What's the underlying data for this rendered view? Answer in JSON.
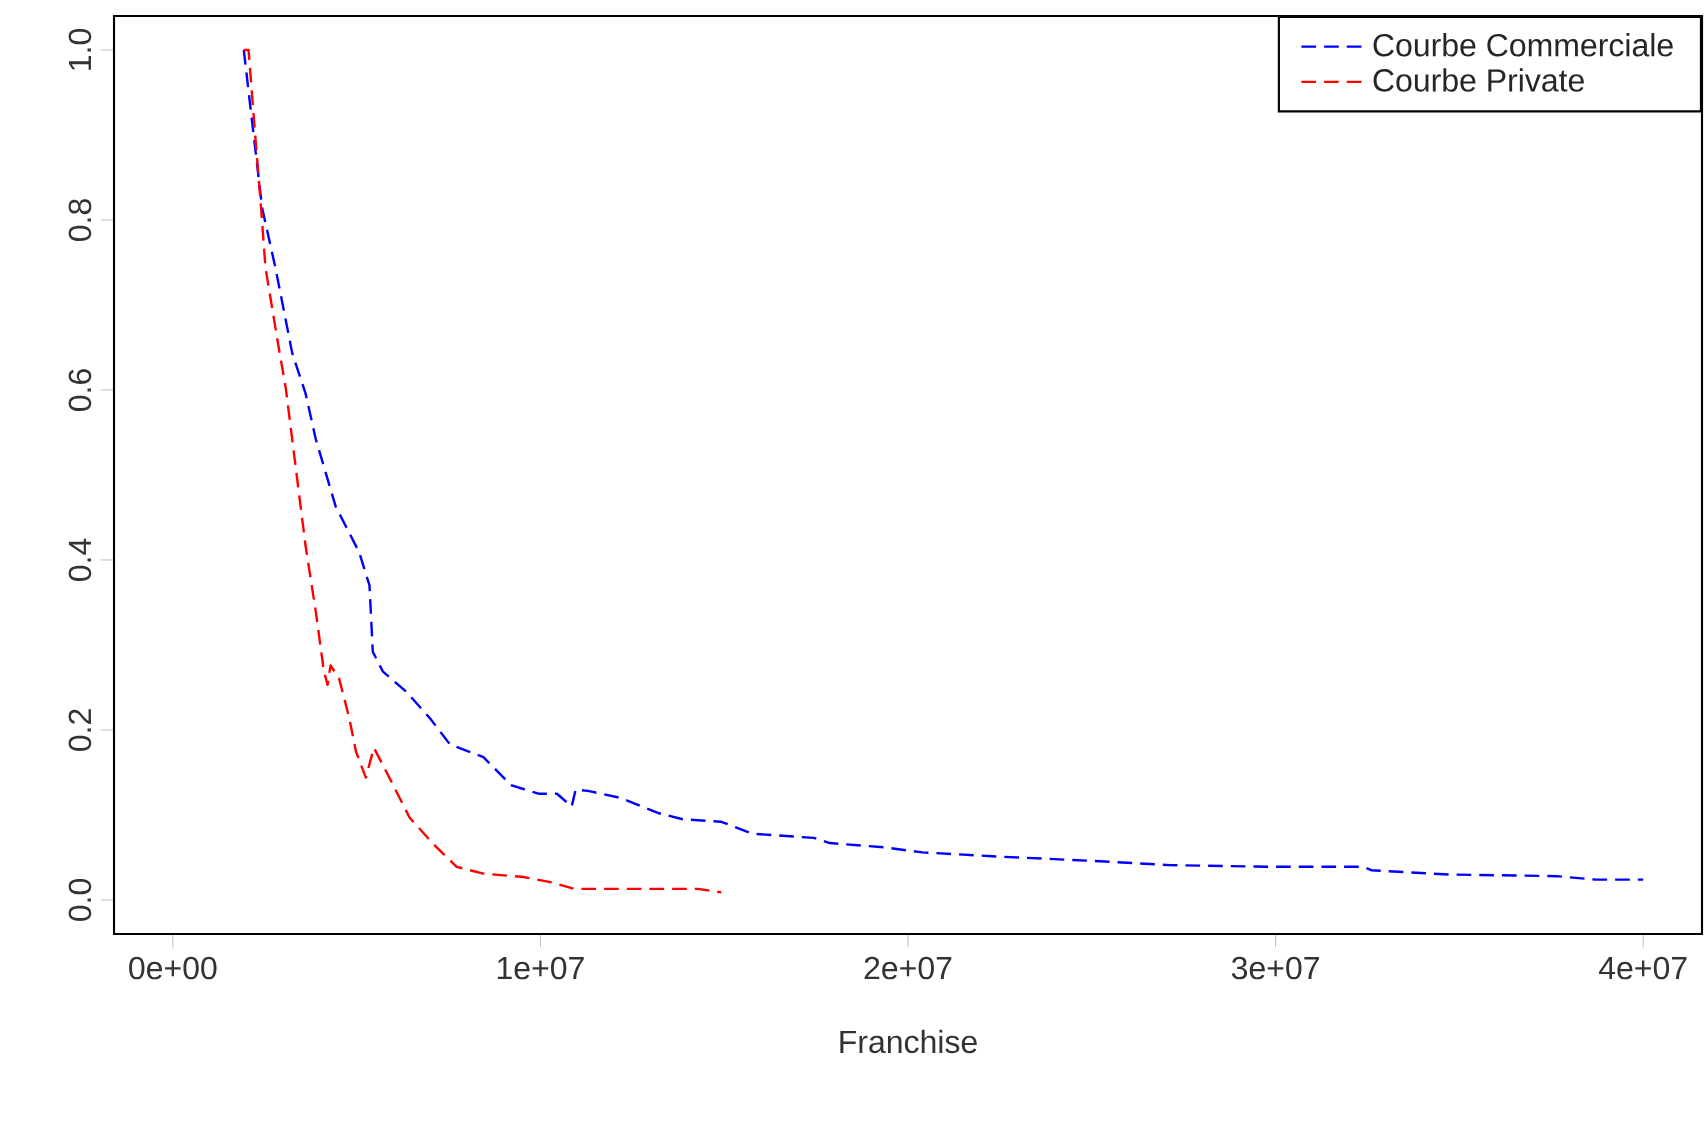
{
  "chart_data": {
    "type": "line",
    "xlabel": "Franchise",
    "xlim": [
      -1600000,
      41600000
    ],
    "ylim": [
      -0.04,
      1.04
    ],
    "xticks": [
      {
        "value": 0,
        "label": "0e+00"
      },
      {
        "value": 10000000,
        "label": "1e+07"
      },
      {
        "value": 20000000,
        "label": "2e+07"
      },
      {
        "value": 30000000,
        "label": "3e+07"
      },
      {
        "value": 40000000,
        "label": "4e+07"
      }
    ],
    "yticks": [
      {
        "value": 0,
        "label": "0.0"
      },
      {
        "value": 0.2,
        "label": "0.2"
      },
      {
        "value": 0.4,
        "label": "0.4"
      },
      {
        "value": 0.6,
        "label": "0.6"
      },
      {
        "value": 0.8,
        "label": "0.8"
      },
      {
        "value": 1.0,
        "label": "1.0"
      }
    ],
    "legend": "top right",
    "line_style": "dashed",
    "series": [
      {
        "name": "Courbe Commerciale",
        "color": "#0000ff",
        "x": [
          1930000,
          2430000,
          2790000,
          3250000,
          3610000,
          3890000,
          4430000,
          5070000,
          5350000,
          5440000,
          5710000,
          6350000,
          6990000,
          7540000,
          8450000,
          9200000,
          9950000,
          10450000,
          10850000,
          10960000,
          11330000,
          12180000,
          13230000,
          13870000,
          14920000,
          15760000,
          17440000,
          17870000,
          19340000,
          20390000,
          22500000,
          25020000,
          27130000,
          29860000,
          32390000,
          32600000,
          34700000,
          37650000,
          38700000,
          40000000
        ],
        "values": [
          1.0,
          0.814,
          0.744,
          0.643,
          0.596,
          0.542,
          0.463,
          0.409,
          0.37,
          0.292,
          0.269,
          0.245,
          0.214,
          0.183,
          0.168,
          0.135,
          0.125,
          0.125,
          0.11,
          0.13,
          0.128,
          0.12,
          0.102,
          0.095,
          0.092,
          0.078,
          0.073,
          0.067,
          0.062,
          0.056,
          0.051,
          0.046,
          0.041,
          0.039,
          0.039,
          0.035,
          0.03,
          0.028,
          0.024,
          0.024
        ]
      },
      {
        "name": "Courbe Private",
        "color": "#ff0000",
        "x": [
          1930000,
          2060000,
          2240000,
          2390000,
          2520000,
          2700000,
          2880000,
          3070000,
          3250000,
          3430000,
          3610000,
          3890000,
          4110000,
          4210000,
          4290000,
          4520000,
          4800000,
          4980000,
          5250000,
          5470000,
          5890000,
          6440000,
          7080000,
          7720000,
          8450000,
          9540000,
          10270000,
          10920000,
          14290000,
          14920000
        ],
        "values": [
          1.0,
          1.0,
          0.9,
          0.82,
          0.744,
          0.697,
          0.65,
          0.603,
          0.541,
          0.479,
          0.417,
          0.339,
          0.269,
          0.253,
          0.276,
          0.261,
          0.214,
          0.175,
          0.144,
          0.179,
          0.144,
          0.097,
          0.066,
          0.039,
          0.031,
          0.027,
          0.021,
          0.013,
          0.013,
          0.009
        ]
      }
    ]
  }
}
